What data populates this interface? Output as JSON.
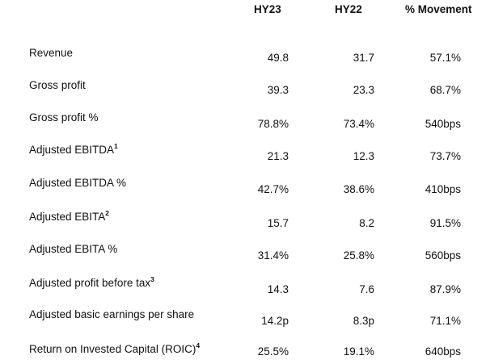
{
  "headers": {
    "hy23": "HY23",
    "hy22": "HY22",
    "movement": "% Movement"
  },
  "rows": [
    {
      "label": "Revenue",
      "sup": "",
      "hy23": "49.8",
      "hy22": "31.7",
      "movement": "57.1%"
    },
    {
      "label": "Gross profit",
      "sup": "",
      "hy23": "39.3",
      "hy22": "23.3",
      "movement": "68.7%"
    },
    {
      "label": "Gross profit %",
      "sup": "",
      "hy23": "78.8%",
      "hy22": "73.4%",
      "movement": "540bps"
    },
    {
      "label": "Adjusted EBITDA",
      "sup": "1",
      "hy23": "21.3",
      "hy22": "12.3",
      "movement": "73.7%"
    },
    {
      "label": "Adjusted EBITDA %",
      "sup": "",
      "hy23": "42.7%",
      "hy22": "38.6%",
      "movement": "410bps"
    },
    {
      "label": "Adjusted EBITA",
      "sup": "2",
      "hy23": "15.7",
      "hy22": "8.2",
      "movement": "91.5%"
    },
    {
      "label": "Adjusted EBITA %",
      "sup": "",
      "hy23": "31.4%",
      "hy22": "25.8%",
      "movement": "560bps"
    },
    {
      "label": "Adjusted profit before tax",
      "sup": "3",
      "hy23": "14.3",
      "hy22": "7.6",
      "movement": "87.9%"
    },
    {
      "label": "Adjusted basic earnings per share",
      "sup": "",
      "hy23": "14.2p",
      "hy22": "8.3p",
      "movement": "71.1%"
    },
    {
      "label": "Return on Invested Capital (ROIC)",
      "sup": "4",
      "hy23": "25.5%",
      "hy22": "19.1%",
      "movement": "640bps"
    }
  ]
}
